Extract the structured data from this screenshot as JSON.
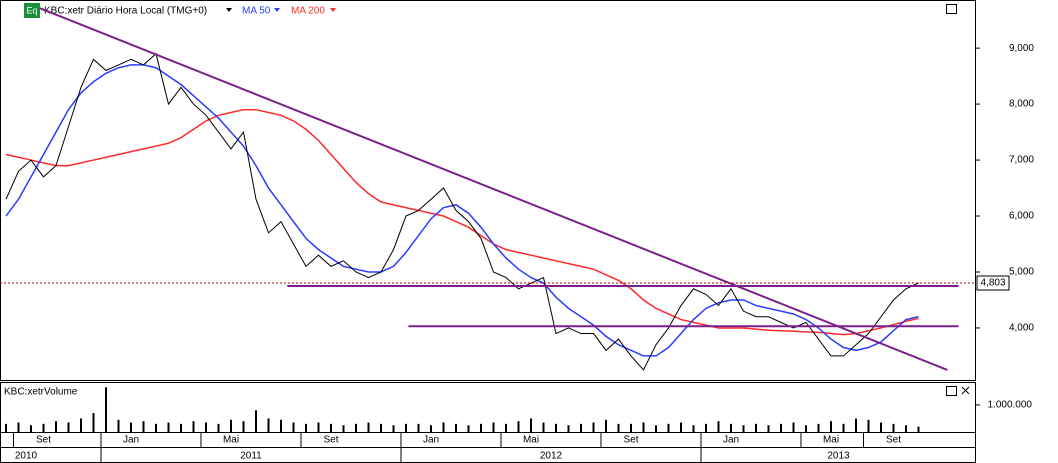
{
  "chart_data": {
    "type": "line",
    "title": "KBC:xetr Diário Hora Local (TMG+0)",
    "badge": "Eq",
    "categories": [
      null,
      null,
      null,
      "Set",
      null,
      null,
      null,
      null,
      null,
      null,
      "Jan",
      null,
      null,
      null,
      null,
      null,
      null,
      null,
      "Mai",
      null,
      null,
      null,
      null,
      null,
      null,
      null,
      "Set",
      null,
      null,
      null,
      null,
      null,
      null,
      null,
      "Jan",
      null,
      null,
      null,
      null,
      null,
      null,
      null,
      "Mai",
      null,
      null,
      null,
      null,
      null,
      null,
      null,
      "Set",
      null,
      null,
      null,
      null,
      null,
      null,
      null,
      "Jan",
      null,
      null,
      null,
      null,
      null,
      null,
      null,
      "Mai",
      null,
      null,
      null,
      null,
      "Set",
      null,
      null
    ],
    "years": [
      "2010",
      "2011",
      "2012",
      "2013"
    ],
    "series": [
      {
        "color": "#000000",
        "values": [
          6300,
          6800,
          7000,
          6700,
          6900,
          7600,
          8300,
          8800,
          8600,
          8700,
          8800,
          8700,
          8900,
          8000,
          8300,
          8000,
          7800,
          7500,
          7200,
          7500,
          6300,
          5700,
          5900,
          5500,
          5100,
          5300,
          5100,
          5200,
          5000,
          4900,
          5000,
          5400,
          6000,
          6100,
          6300,
          6500,
          6100,
          5900,
          5600,
          5000,
          4900,
          4700,
          4800,
          4900,
          3900,
          4000,
          3900,
          3900,
          3600,
          3800,
          3500,
          3250,
          3700,
          4000,
          4400,
          4700,
          4600,
          4400,
          4700,
          4300,
          4200,
          4200,
          4100,
          4000,
          4100,
          3800,
          3500,
          3500,
          3700,
          3900,
          4200,
          4500,
          4700,
          4803
        ]
      },
      {
        "name": "MA 50",
        "color": "#2b3cff",
        "values": [
          6000,
          6300,
          6700,
          7100,
          7500,
          7900,
          8200,
          8400,
          8550,
          8650,
          8700,
          8700,
          8650,
          8500,
          8350,
          8150,
          7950,
          7750,
          7500,
          7250,
          6900,
          6500,
          6200,
          5900,
          5600,
          5400,
          5250,
          5100,
          5050,
          5000,
          5000,
          5100,
          5350,
          5650,
          5950,
          6150,
          6200,
          6050,
          5800,
          5500,
          5250,
          5050,
          4900,
          4800,
          4550,
          4350,
          4200,
          4050,
          3850,
          3700,
          3600,
          3500,
          3500,
          3650,
          3900,
          4150,
          4350,
          4450,
          4500,
          4500,
          4400,
          4350,
          4300,
          4250,
          4150,
          4000,
          3800,
          3650,
          3600,
          3650,
          3750,
          3950,
          4150,
          4200
        ]
      },
      {
        "name": "MA 200",
        "color": "#ff2a2a",
        "values": [
          7100,
          7050,
          7000,
          6950,
          6900,
          6900,
          6950,
          7000,
          7050,
          7100,
          7150,
          7200,
          7250,
          7300,
          7400,
          7550,
          7700,
          7800,
          7850,
          7900,
          7900,
          7850,
          7800,
          7700,
          7550,
          7350,
          7100,
          6850,
          6600,
          6400,
          6250,
          6200,
          6150,
          6100,
          6050,
          6000,
          5900,
          5800,
          5650,
          5500,
          5400,
          5350,
          5300,
          5250,
          5200,
          5150,
          5100,
          5050,
          4950,
          4850,
          4700,
          4500,
          4350,
          4250,
          4150,
          4100,
          4050,
          4000,
          4000,
          4000,
          3980,
          3960,
          3950,
          3940,
          3930,
          3920,
          3900,
          3880,
          3900,
          3950,
          4000,
          4060,
          4120,
          4170
        ]
      }
    ],
    "ylim": [
      3070,
      9860
    ],
    "yticks": [
      {
        "value": 4000,
        "label": "4,000"
      },
      {
        "value": 5000,
        "label": "5,000"
      },
      {
        "value": 6000,
        "label": "6,000"
      },
      {
        "value": 7000,
        "label": "7,000"
      },
      {
        "value": 8000,
        "label": "8,000"
      },
      {
        "value": 9000,
        "label": "9,000"
      }
    ],
    "last_price": {
      "value": 4803,
      "label": "4,803",
      "color": "#c00000"
    },
    "trendlines": {
      "color": "#7b1f8a",
      "lines": [
        {
          "start": [
            2.7,
            9714
          ],
          "end": [
            75.3,
            3250
          ]
        },
        {
          "start": [
            22.5,
            4750
          ],
          "end": [
            76.2,
            4750
          ]
        },
        {
          "start": [
            32.2,
            4030
          ],
          "end": [
            76.2,
            4030
          ]
        }
      ]
    },
    "volume": {
      "title": "KBC:xetrVolume",
      "color": "#000000",
      "values": [
        300000,
        350000,
        250000,
        300000,
        400000,
        350000,
        500000,
        700000,
        1650000,
        450000,
        350000,
        400000,
        300000,
        350000,
        300000,
        400000,
        350000,
        300000,
        450000,
        400000,
        800000,
        500000,
        450000,
        350000,
        300000,
        350000,
        300000,
        250000,
        300000,
        350000,
        300000,
        250000,
        300000,
        300000,
        250000,
        350000,
        300000,
        250000,
        300000,
        350000,
        300000,
        400000,
        500000,
        350000,
        300000,
        250000,
        300000,
        350000,
        450000,
        300000,
        300000,
        350000,
        250000,
        300000,
        350000,
        250000,
        300000,
        400000,
        300000,
        250000,
        300000,
        250000,
        300000,
        350000,
        250000,
        300000,
        400000,
        300000,
        500000,
        450000,
        350000,
        300000,
        250000,
        200000
      ],
      "ylim": [
        0,
        1810000
      ],
      "yticks": [
        {
          "value": 1000000,
          "label": "1.000.000"
        }
      ]
    }
  }
}
